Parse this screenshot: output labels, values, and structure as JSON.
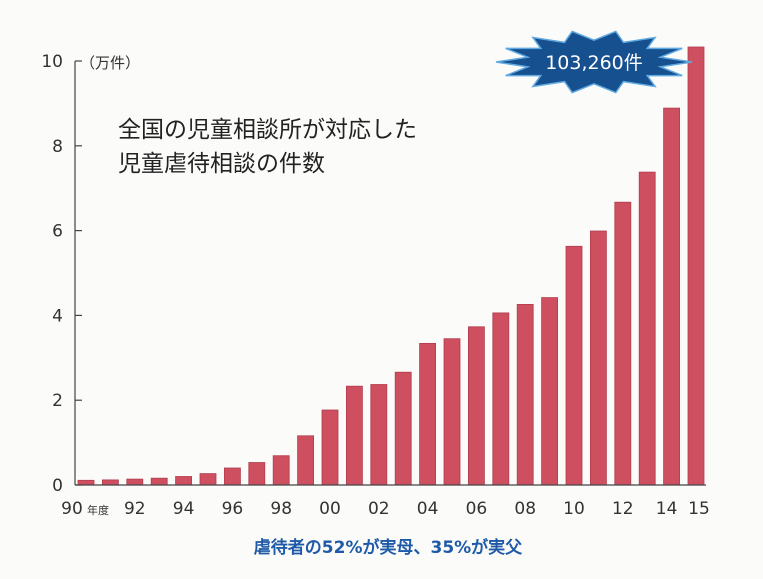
{
  "colors": {
    "bar": "#cd4f60",
    "bar_stroke": "#b23d4e",
    "axis": "#444444",
    "caption": "#1f5aa8",
    "callout_fill": "#16508f",
    "callout_stroke": "#5fa8e0",
    "background": "#fbfbf9"
  },
  "chart_data": {
    "type": "bar",
    "title_lines": [
      "全国の児童相談所が対応した",
      "児童虐待相談の件数"
    ],
    "ylabel": "（万件）",
    "ylim": [
      0,
      10
    ],
    "yticks": [
      "0",
      "2",
      "4",
      "6",
      "8",
      "10"
    ],
    "xtick_labels": [
      "90",
      "92",
      "94",
      "96",
      "98",
      "00",
      "02",
      "04",
      "06",
      "08",
      "10",
      "12",
      "14",
      "15"
    ],
    "xtick_unit": "年度",
    "categories": [
      "1990",
      "1991",
      "1992",
      "1993",
      "1994",
      "1995",
      "1996",
      "1997",
      "1998",
      "1999",
      "2000",
      "2001",
      "2002",
      "2003",
      "2004",
      "2005",
      "2006",
      "2007",
      "2008",
      "2009",
      "2010",
      "2011",
      "2012",
      "2013",
      "2014",
      "2015"
    ],
    "values": [
      0.11,
      0.12,
      0.14,
      0.16,
      0.2,
      0.27,
      0.4,
      0.53,
      0.69,
      1.16,
      1.77,
      2.33,
      2.37,
      2.66,
      3.34,
      3.45,
      3.73,
      4.06,
      4.26,
      4.42,
      5.63,
      5.99,
      6.67,
      7.38,
      8.89,
      10.33
    ],
    "callout": "103,260件",
    "caption": "虐待者の52%が実母、35%が実父"
  }
}
